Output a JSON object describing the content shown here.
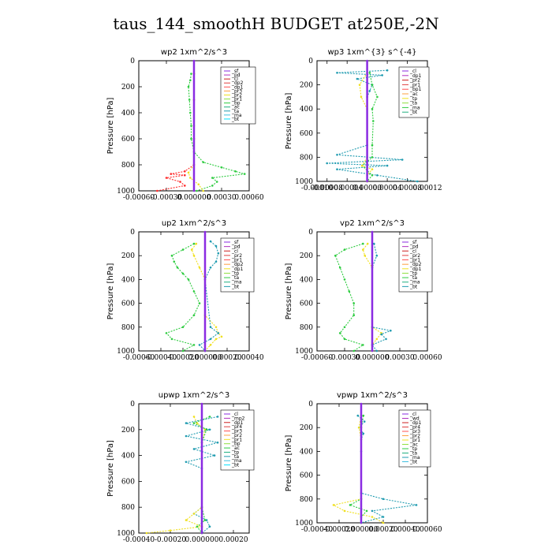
{
  "figure_title": "taus_144_smoothH  BUDGET at250E,-2N",
  "chart_data": [
    {
      "type": "line",
      "title": "wp2   1xm^2/s^3",
      "ylabel": "Pressure [hPa]",
      "ylim": [
        1000,
        0
      ],
      "yticks": [
        "0",
        "200",
        "400",
        "600",
        "800",
        "1000"
      ],
      "xlim": [
        -0.0006,
        0.0006
      ],
      "xticks": [
        -0.0006,
        -0.0003,
        0.0,
        0.0003,
        0.0006
      ],
      "xtick_labels": [
        "-0.00060",
        "-0.00030",
        "0.000000",
        "0.00030",
        "0.00060"
      ],
      "legend": [
        "_sf",
        "_pd",
        "_cl",
        "_dp2",
        "_dp1",
        "_pr3",
        "_pr2",
        "_pr1",
        "_bp",
        "_ac",
        "_ta",
        "_ma",
        "_bt"
      ],
      "series": [
        {
          "name": "_pr1",
          "color": "#2ecc40",
          "p": [
            100,
            150,
            200,
            300,
            400,
            500,
            600,
            700,
            780,
            820,
            850,
            870,
            900,
            930,
            960,
            1000
          ],
          "v": [
            -3e-05,
            -4e-05,
            -6e-05,
            -5e-05,
            -4e-05,
            -3e-05,
            -3e-05,
            0,
            0.0001,
            0.0003,
            0.00045,
            0.00055,
            0.0002,
            0.00025,
            0.0002,
            3e-05
          ]
        },
        {
          "name": "_dp1",
          "color": "#ff2a2a",
          "p": [
            100,
            300,
            600,
            800,
            850,
            870,
            880,
            900,
            930,
            960,
            1000
          ],
          "v": [
            0,
            0,
            0,
            0,
            -0.0001,
            -0.00025,
            -0.0001,
            -0.0003,
            -0.00015,
            -0.0001,
            -0.0004
          ]
        },
        {
          "name": "_pr3",
          "color": "#f0e020",
          "p": [
            100,
            500,
            800,
            860,
            900,
            950,
            1000
          ],
          "v": [
            0,
            0,
            0,
            -6e-05,
            -4e-05,
            5e-05,
            0.0001
          ]
        },
        {
          "name": "_sf",
          "color": "#8a2be2",
          "p": [
            0,
            1000
          ],
          "v": [
            0,
            0
          ]
        }
      ]
    },
    {
      "type": "line",
      "title": "wp3   1xm^{3} s^{-4}",
      "ylabel": "Pressure [hPa]",
      "ylim": [
        1000,
        0
      ],
      "yticks": [
        "0",
        "200",
        "400",
        "600",
        "800",
        "1000"
      ],
      "xlim": [
        -0.0001,
        0.00012
      ],
      "xticks": [
        -0.0001,
        -8e-05,
        -4e-05,
        0.0,
        4e-05,
        8e-05,
        0.00012
      ],
      "xtick_labels": [
        "-0.00010",
        "-0.00008",
        "-0.00004",
        "0.00000",
        "0.00004",
        "0.00008",
        "0.00012"
      ],
      "legend": [
        "_cl",
        "_dp1",
        "_pr2",
        "_pr1",
        "_bp1",
        "_ac",
        "_tp",
        "_ta",
        "_ma",
        "_bt"
      ],
      "series": [
        {
          "name": "_tp",
          "color": "#1f9bb0",
          "p": [
            80,
            100,
            120,
            150,
            200,
            250,
            300,
            700,
            780,
            820,
            850,
            870,
            900,
            950,
            1000
          ],
          "v": [
            4e-05,
            -6e-05,
            3e-05,
            -2e-05,
            1e-05,
            5e-06,
            0,
            0,
            -6e-05,
            7e-05,
            -8e-05,
            4e-05,
            -6e-05,
            2e-05,
            0.0001
          ]
        },
        {
          "name": "_ac",
          "color": "#2ecc40",
          "p": [
            100,
            200,
            300,
            400,
            500,
            700,
            800,
            870,
            950,
            1000
          ],
          "v": [
            5e-06,
            1e-05,
            2e-05,
            1e-05,
            1.2e-05,
            1e-05,
            1e-05,
            -1e-05,
            1e-05,
            0
          ]
        },
        {
          "name": "_pr1",
          "color": "#f0e020",
          "p": [
            100,
            200,
            300,
            400,
            800,
            870,
            900,
            950,
            1000
          ],
          "v": [
            0,
            -1.5e-05,
            -1.2e-05,
            0,
            0,
            -1e-05,
            1e-05,
            0,
            0
          ]
        },
        {
          "name": "_cl",
          "color": "#8a2be2",
          "p": [
            0,
            1000
          ],
          "v": [
            0,
            0
          ]
        }
      ]
    },
    {
      "type": "line",
      "title": "up2   1xm^2/s^3",
      "ylabel": "Pressure [hPa]",
      "ylim": [
        1000,
        0
      ],
      "yticks": [
        "0",
        "200",
        "400",
        "600",
        "800",
        "1000"
      ],
      "xlim": [
        -0.0006,
        0.0004
      ],
      "xticks": [
        -0.0006,
        -0.0004,
        -0.0002,
        0.0,
        0.0002,
        0.0004
      ],
      "xtick_labels": [
        "-0.00060",
        "-0.00040",
        "-0.00020",
        "0.000000",
        "0.00020",
        "0.00040"
      ],
      "legend": [
        "_sf",
        "_pd",
        "_cl",
        "_pr2",
        "_pr1",
        "_dp2",
        "_dp1",
        "_tp",
        "_ta",
        "_ma",
        "_bt"
      ],
      "series": [
        {
          "name": "_dp1",
          "color": "#2ecc40",
          "p": [
            100,
            150,
            200,
            250,
            300,
            350,
            400,
            500,
            600,
            700,
            800,
            850,
            900,
            950,
            1000
          ],
          "v": [
            -0.0001,
            -0.0002,
            -0.0003,
            -0.00028,
            -0.00025,
            -0.0002,
            -0.00015,
            -0.0001,
            -5e-05,
            -0.0001,
            -0.0002,
            -0.00035,
            -0.0003,
            -0.0001,
            -0.0002
          ]
        },
        {
          "name": "_pr2",
          "color": "#f0e020",
          "p": [
            100,
            150,
            200,
            300,
            400,
            700,
            800,
            850,
            880,
            900,
            950,
            1000
          ],
          "v": [
            -8e-05,
            -0.00012,
            -0.0001,
            -5e-05,
            0,
            0,
            0.0001,
            0.00012,
            0.00015,
            0.0001,
            5e-05,
            0
          ]
        },
        {
          "name": "_tp",
          "color": "#1f9bb0",
          "p": [
            80,
            120,
            180,
            250,
            300,
            400,
            800,
            850,
            900,
            950,
            1000
          ],
          "v": [
            5e-05,
            0.0001,
            0.00012,
            0.0001,
            5e-05,
            0,
            5e-05,
            0.00012,
            5e-05,
            -5e-05,
            0
          ]
        },
        {
          "name": "_sf",
          "color": "#8a2be2",
          "p": [
            0,
            1000
          ],
          "v": [
            0,
            0
          ]
        }
      ]
    },
    {
      "type": "line",
      "title": "vp2   1xm^2/s^3",
      "ylabel": "Pressure [hPa]",
      "ylim": [
        1000,
        0
      ],
      "yticks": [
        "0",
        "200",
        "400",
        "600",
        "800",
        "1000"
      ],
      "xlim": [
        -0.0006,
        0.0006
      ],
      "xticks": [
        -0.0006,
        -0.0003,
        0.0,
        0.0003,
        0.0006
      ],
      "xtick_labels": [
        "-0.00060",
        "-0.00030",
        "0.000000",
        "0.00030",
        "0.00060"
      ],
      "legend": [
        "_sf",
        "_pd",
        "_cl",
        "_pr2",
        "_pr1",
        "_dp2",
        "_dp1",
        "_tp",
        "_ta",
        "_ma",
        "_bt"
      ],
      "series": [
        {
          "name": "_dp1",
          "color": "#2ecc40",
          "p": [
            100,
            150,
            200,
            300,
            400,
            500,
            600,
            700,
            800,
            850,
            900,
            950,
            1000
          ],
          "v": [
            -0.0001,
            -0.0003,
            -0.0004,
            -0.00035,
            -0.0003,
            -0.00025,
            -0.0002,
            -0.0002,
            -0.0003,
            -0.00035,
            -0.0003,
            -0.0001,
            -0.0002
          ]
        },
        {
          "name": "_pr2",
          "color": "#f0e020",
          "p": [
            100,
            150,
            200,
            300,
            800,
            850,
            900,
            950,
            1000
          ],
          "v": [
            -5e-05,
            -0.0001,
            -8e-05,
            0,
            0,
            0.0001,
            5e-05,
            0,
            0
          ]
        },
        {
          "name": "_tp",
          "color": "#1f9bb0",
          "p": [
            100,
            200,
            300,
            800,
            830,
            860,
            900,
            950,
            1000
          ],
          "v": [
            2e-05,
            5e-05,
            0,
            0,
            0.0002,
            0.0001,
            0.00015,
            0,
            5e-05
          ]
        },
        {
          "name": "_sf",
          "color": "#8a2be2",
          "p": [
            0,
            1000
          ],
          "v": [
            0,
            0
          ]
        }
      ]
    },
    {
      "type": "line",
      "title": "upwp   1xm^2/s^3",
      "ylabel": "Pressure [hPa]",
      "ylim": [
        1000,
        0
      ],
      "yticks": [
        "0",
        "200",
        "400",
        "600",
        "800",
        "1000"
      ],
      "xlim": [
        -0.0004,
        0.0003
      ],
      "xticks": [
        -0.0004,
        -0.0002,
        0.0,
        0.0002
      ],
      "xtick_labels": [
        "-0.00040",
        "-0.00020",
        "0.000000",
        "0.00020"
      ],
      "legend": [
        "_cl",
        "_mp2",
        "_dp1",
        "_pr4",
        "_pr3",
        "_pr2",
        "_pr1",
        "_bp",
        "_ac",
        "_tp",
        "_ta",
        "_ma",
        "_bt"
      ],
      "series": [
        {
          "name": "_tp",
          "color": "#1f9bb0",
          "p": [
            100,
            150,
            200,
            250,
            300,
            350,
            400,
            450,
            500,
            800,
            850,
            900,
            950,
            1000
          ],
          "v": [
            0.0001,
            -0.0001,
            5e-05,
            -0.0001,
            0.0001,
            -5e-05,
            8e-05,
            -0.0001,
            0,
            0,
            -5e-05,
            3e-05,
            5e-05,
            0
          ]
        },
        {
          "name": "_pr2",
          "color": "#f0e020",
          "p": [
            100,
            150,
            200,
            300,
            800,
            850,
            900,
            950,
            980,
            1000
          ],
          "v": [
            -5e-05,
            -3e-05,
            2e-05,
            0,
            0,
            -5e-05,
            -0.0001,
            0,
            -0.0002,
            -0.00035
          ]
        },
        {
          "name": "_pr1",
          "color": "#2ecc40",
          "p": [
            100,
            150,
            200,
            300,
            800,
            900,
            950,
            1000
          ],
          "v": [
            5e-05,
            -5e-05,
            3e-05,
            0,
            0,
            2e-05,
            -3e-05,
            0
          ]
        },
        {
          "name": "_cl",
          "color": "#8a2be2",
          "p": [
            0,
            1000
          ],
          "v": [
            0,
            0
          ]
        }
      ]
    },
    {
      "type": "line",
      "title": "vpwp   1xm^2/s^3",
      "ylabel": "Pressure [hPa]",
      "ylim": [
        1000,
        0
      ],
      "yticks": [
        "0",
        "200",
        "400",
        "600",
        "800",
        "1000"
      ],
      "xlim": [
        -0.0004,
        0.0006
      ],
      "xticks": [
        -0.0004,
        -0.0002,
        0.0,
        0.0002,
        0.0004,
        0.0006
      ],
      "xtick_labels": [
        "-0.00040",
        "-0.00020",
        "0.000000",
        "0.00020",
        "0.00040",
        "0.00060"
      ],
      "legend": [
        "_cl",
        "_wd",
        "_dp1",
        "_pr4",
        "_pr3",
        "_pr2",
        "_pr1",
        "_ac",
        "_tp",
        "_ta",
        "_ma",
        "_bt"
      ],
      "series": [
        {
          "name": "_tp",
          "color": "#1f9bb0",
          "p": [
            100,
            150,
            200,
            250,
            300,
            400,
            750,
            800,
            850,
            900,
            950,
            1000
          ],
          "v": [
            -3e-05,
            3e-05,
            -2e-05,
            2e-05,
            0,
            0,
            0,
            0.0002,
            0.0005,
            0.0001,
            0.0002,
            0
          ]
        },
        {
          "name": "_pr2",
          "color": "#f0e020",
          "p": [
            100,
            200,
            300,
            800,
            850,
            900,
            950,
            1000
          ],
          "v": [
            0,
            -2e-05,
            0,
            0,
            -0.00025,
            -0.00015,
            0.0001,
            0.0002
          ]
        },
        {
          "name": "_pr1",
          "color": "#2ecc40",
          "p": [
            100,
            200,
            800,
            850,
            900,
            950,
            1000
          ],
          "v": [
            2e-05,
            0,
            0,
            -0.0001,
            5e-05,
            0,
            0
          ]
        },
        {
          "name": "_cl",
          "color": "#8a2be2",
          "p": [
            0,
            1000
          ],
          "v": [
            0,
            0
          ]
        }
      ]
    }
  ]
}
